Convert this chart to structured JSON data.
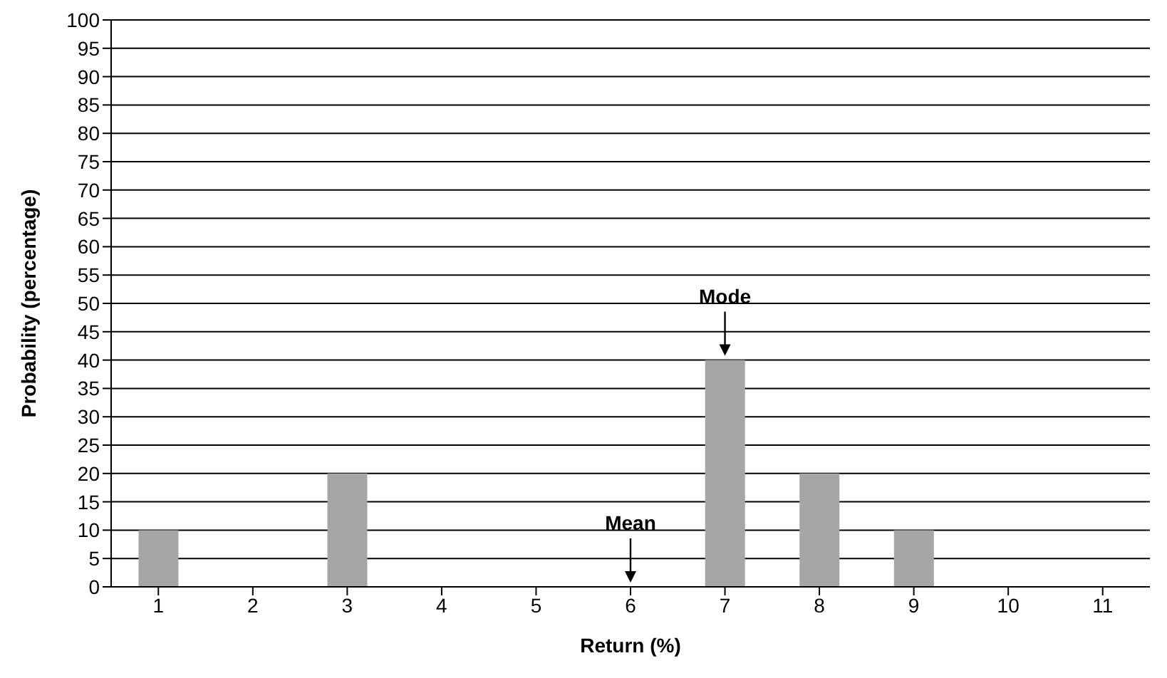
{
  "chart_data": {
    "type": "bar",
    "xlabel": "Return (%)",
    "ylabel": "Probability (percentage)",
    "categories": [
      "1",
      "2",
      "3",
      "4",
      "5",
      "6",
      "7",
      "8",
      "9",
      "10",
      "11"
    ],
    "values": [
      10,
      0,
      20,
      0,
      0,
      0,
      40,
      20,
      10,
      0,
      0
    ],
    "color": "#a6a6a6",
    "ylim": [
      0,
      100
    ],
    "yticks": [
      0,
      5,
      10,
      15,
      20,
      25,
      30,
      35,
      40,
      45,
      50,
      55,
      60,
      65,
      70,
      75,
      80,
      85,
      90,
      95,
      100
    ],
    "grid": "y",
    "annotations": [
      {
        "text": "Mode",
        "x": "7",
        "y": 40
      },
      {
        "text": "Mean",
        "x": "6",
        "y": 0
      }
    ]
  }
}
